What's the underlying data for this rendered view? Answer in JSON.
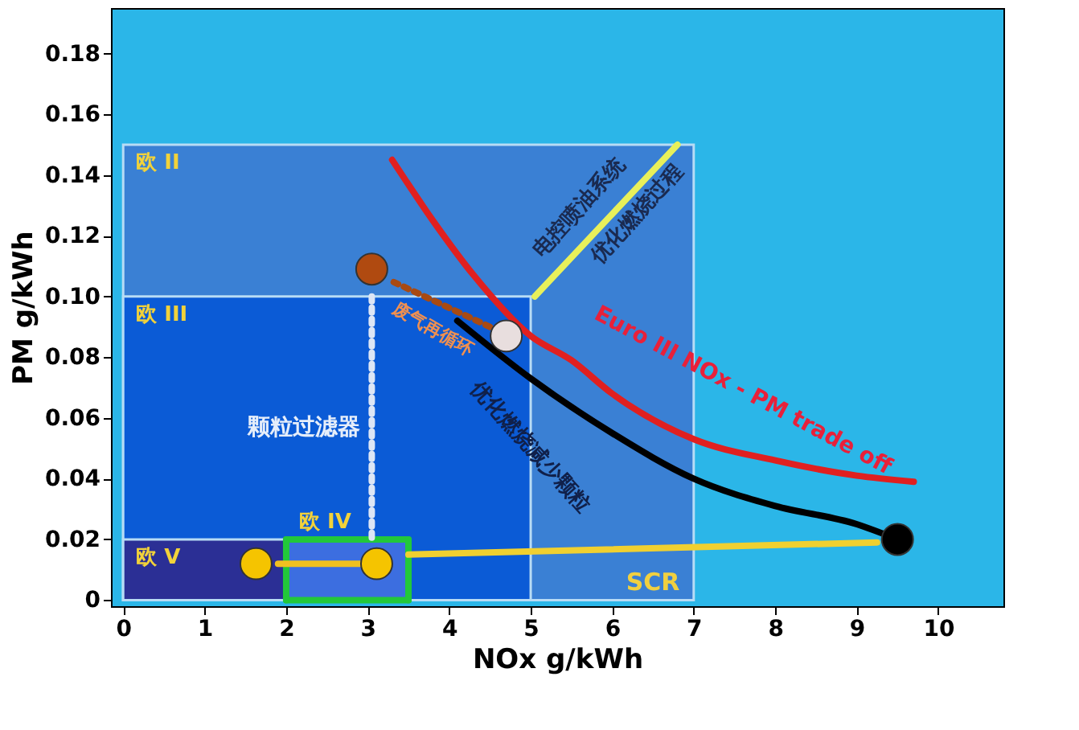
{
  "chart_data": {
    "type": "line",
    "xlabel": "NOx  g/kWh",
    "ylabel": "PM  g/kWh",
    "xlim": [
      -0.15,
      10.8
    ],
    "ylim": [
      -0.002,
      0.195
    ],
    "xticks": [
      0,
      1,
      2,
      3,
      4,
      5,
      6,
      7,
      8,
      9,
      10
    ],
    "yticks": [
      {
        "value": 0,
        "label": "0"
      },
      0.02,
      0.04,
      0.06,
      0.08,
      {
        "value": 0.1,
        "label": "0.10"
      },
      0.12,
      0.14,
      0.16,
      0.18
    ],
    "grid": false,
    "series": [
      {
        "name": "欧 II",
        "type": "area",
        "color": "#3a80d4",
        "x": [
          0,
          7
        ],
        "values": [
          0.15,
          0.15
        ]
      },
      {
        "name": "欧 III",
        "type": "area",
        "color": "#0b5bd6",
        "x": [
          0,
          5
        ],
        "values": [
          0.1,
          0.1
        ]
      },
      {
        "name": "欧 V",
        "type": "area",
        "color": "#2b2f95",
        "x": [
          0,
          2
        ],
        "values": [
          0.02,
          0.02
        ]
      },
      {
        "name": "欧 IV",
        "type": "area",
        "color": "#3c6ee0",
        "x": [
          2,
          3.5
        ],
        "values": [
          0.02,
          0.02
        ]
      },
      {
        "color": "#22c83a",
        "x": [
          2,
          3.5
        ],
        "values": [
          0.02,
          0.02
        ]
      },
      {
        "color": "#22c83a",
        "x": [
          2,
          3.5
        ],
        "values": [
          0,
          0
        ]
      },
      {
        "color": "#22c83a",
        "x": [
          2,
          2
        ],
        "values": [
          0,
          0.02
        ]
      },
      {
        "color": "#22c83a",
        "x": [
          3.5,
          3.5
        ],
        "values": [
          0,
          0.02
        ]
      },
      {
        "color": "#e02020",
        "x": [
          3.3,
          3.8,
          4.3,
          5.0,
          5.5,
          6.0,
          7.0,
          8.0,
          9.0,
          9.7
        ],
        "values": [
          0.145,
          0.125,
          0.107,
          0.087,
          0.079,
          0.068,
          0.053,
          0.046,
          0.041,
          0.039
        ]
      },
      {
        "color": "#000000",
        "x": [
          4.1,
          5.0,
          6.0,
          7.0,
          8.0,
          9.0,
          9.5
        ],
        "values": [
          0.092,
          0.073,
          0.055,
          0.04,
          0.031,
          0.025,
          0.02
        ]
      },
      {
        "color": "#f0d030",
        "x": [
          9.25,
          3.5
        ],
        "values": [
          0.019,
          0.015
        ]
      },
      {
        "color": "#f0c020",
        "x": [
          3.1,
          1.9
        ],
        "values": [
          0.012,
          0.012
        ]
      },
      {
        "color": "#e8f05a",
        "x": [
          6.8,
          5.05
        ],
        "values": [
          0.15,
          0.1
        ]
      },
      {
        "color": "#dde6f5",
        "line_style": "dotted",
        "x": [
          3.05,
          3.05
        ],
        "values": [
          0.1,
          0.02
        ]
      },
      {
        "color": "#a84a12",
        "line_style": "dotted",
        "x": [
          4.5,
          3.3
        ],
        "values": [
          0.09,
          0.105
        ]
      },
      {
        "type": "scatter",
        "x": [
          3.05,
          4.7,
          1.63,
          3.11,
          9.5
        ],
        "values": [
          0.109,
          0.087,
          0.012,
          0.012,
          0.02
        ],
        "colors": [
          "#b04a10",
          "#e8dede",
          "#f5c400",
          "#f5c400",
          "#000000"
        ]
      }
    ],
    "annotations": [
      "电控喷油系统",
      "优化燃烧过程",
      "Euro III NOx - PM trade off",
      "废气再循环",
      "颗粒过滤器",
      "优化燃烧减少颗粒",
      "SCR"
    ]
  }
}
